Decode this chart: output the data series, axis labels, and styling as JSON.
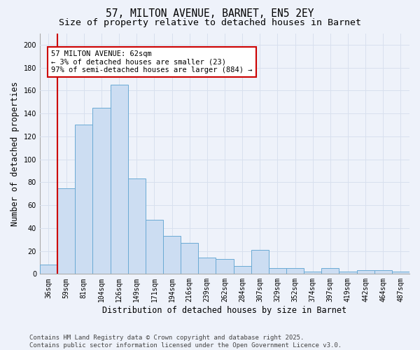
{
  "title_line1": "57, MILTON AVENUE, BARNET, EN5 2EY",
  "title_line2": "Size of property relative to detached houses in Barnet",
  "xlabel": "Distribution of detached houses by size in Barnet",
  "ylabel": "Number of detached properties",
  "categories": [
    "36sqm",
    "59sqm",
    "81sqm",
    "104sqm",
    "126sqm",
    "149sqm",
    "171sqm",
    "194sqm",
    "216sqm",
    "239sqm",
    "262sqm",
    "284sqm",
    "307sqm",
    "329sqm",
    "352sqm",
    "374sqm",
    "397sqm",
    "419sqm",
    "442sqm",
    "464sqm",
    "487sqm"
  ],
  "values": [
    8,
    75,
    130,
    145,
    165,
    83,
    47,
    33,
    27,
    14,
    13,
    7,
    21,
    5,
    5,
    2,
    5,
    2,
    3,
    3,
    2
  ],
  "bar_color": "#ccddf2",
  "bar_edge_color": "#6aaad4",
  "vline_x_index": 1,
  "vline_color": "#cc0000",
  "annotation_text": "57 MILTON AVENUE: 62sqm\n← 3% of detached houses are smaller (23)\n97% of semi-detached houses are larger (884) →",
  "annotation_box_color": "#ffffff",
  "annotation_box_edge": "#cc0000",
  "ylim": [
    0,
    210
  ],
  "yticks": [
    0,
    20,
    40,
    60,
    80,
    100,
    120,
    140,
    160,
    180,
    200
  ],
  "background_color": "#eef2fa",
  "grid_color": "#d8e0ee",
  "footer": "Contains HM Land Registry data © Crown copyright and database right 2025.\nContains public sector information licensed under the Open Government Licence v3.0.",
  "title_fontsize": 10.5,
  "subtitle_fontsize": 9.5,
  "xlabel_fontsize": 8.5,
  "ylabel_fontsize": 8.5,
  "tick_fontsize": 7,
  "annotation_fontsize": 7.5,
  "footer_fontsize": 6.5
}
